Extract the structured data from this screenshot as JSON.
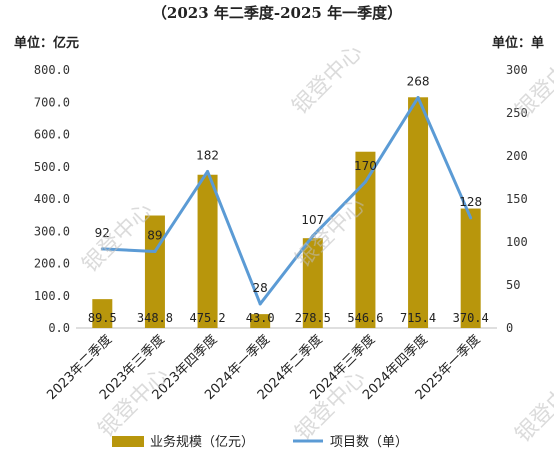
{
  "chart_data": {
    "type": "bar",
    "subtitle": "（2023 年二季度-2025 年一季度）",
    "left_unit": "单位：亿元",
    "right_unit": "单位：单",
    "categories": [
      "2023年二季度",
      "2023年三季度",
      "2023年四季度",
      "2024年一季度",
      "2024年二季度",
      "2024年三季度",
      "2024年四季度",
      "2025年一季度"
    ],
    "series": [
      {
        "name": "业务规模（亿元）",
        "type": "bar",
        "axis": "left",
        "color": "#b8960c",
        "values": [
          89.5,
          348.8,
          475.2,
          43.0,
          278.5,
          546.6,
          715.4,
          370.4
        ],
        "value_labels": [
          "89.5",
          "348.8",
          "475.2",
          "43.0",
          "278.5",
          "546.6",
          "715.4",
          "370.4"
        ]
      },
      {
        "name": "项目数（单）",
        "type": "line",
        "axis": "right",
        "color": "#5b9bd5",
        "values": [
          92,
          89,
          182,
          28,
          107,
          170,
          268,
          128
        ],
        "value_labels": [
          "92",
          "89",
          "182",
          "28",
          "107",
          "170",
          "268",
          "128"
        ]
      }
    ],
    "left_axis": {
      "ylim": [
        0,
        800
      ],
      "ticks": [
        "0.0",
        "100.0",
        "200.0",
        "300.0",
        "400.0",
        "500.0",
        "600.0",
        "700.0",
        "800.0"
      ]
    },
    "right_axis": {
      "ylim": [
        0,
        300
      ],
      "ticks": [
        "0",
        "50",
        "100",
        "150",
        "200",
        "250",
        "300"
      ]
    },
    "grid": false,
    "legend_position": "bottom"
  },
  "watermark": "银登中心"
}
